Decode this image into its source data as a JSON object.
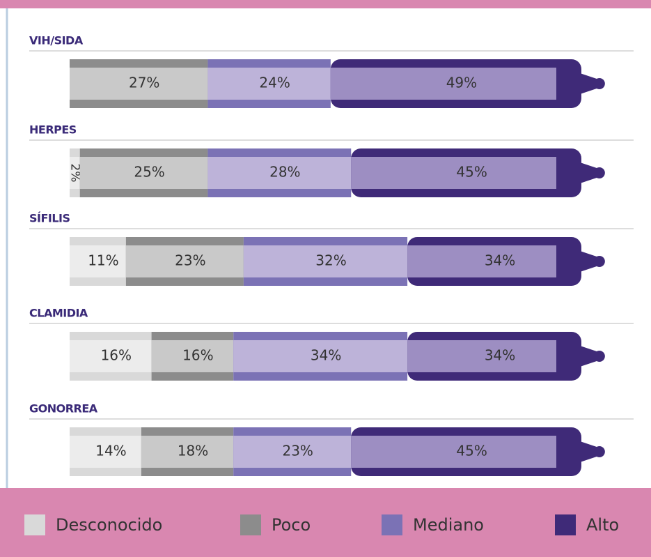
{
  "chart_data": {
    "type": "bar",
    "orientation": "horizontal",
    "stacked": true,
    "categories": [
      "VIH/SIDA",
      "HERPES",
      "SÍFILIS",
      "CLAMIDIA",
      "GONORREA"
    ],
    "series": [
      {
        "name": "Desconocido",
        "color": "#d9d9d9",
        "values": [
          null,
          2,
          11,
          16,
          14
        ],
        "value_labels": [
          null,
          "2%",
          "11%",
          "16%",
          "14%"
        ]
      },
      {
        "name": "Poco",
        "color": "#8c8c8c",
        "values": [
          27,
          25,
          23,
          16,
          18
        ],
        "value_labels": [
          "27%",
          "25%",
          "23%",
          "16%",
          "18%"
        ]
      },
      {
        "name": "Mediano",
        "color": "#7b72b5",
        "values": [
          24,
          28,
          32,
          34,
          23
        ],
        "value_labels": [
          "24%",
          "28%",
          "32%",
          "34%",
          "23%"
        ]
      },
      {
        "name": "Alto",
        "color": "#3f2a78",
        "values": [
          49,
          45,
          34,
          34,
          45
        ],
        "value_labels": [
          "49%",
          "45%",
          "34%",
          "34%",
          "45%"
        ]
      }
    ],
    "legend": "bottom"
  }
}
